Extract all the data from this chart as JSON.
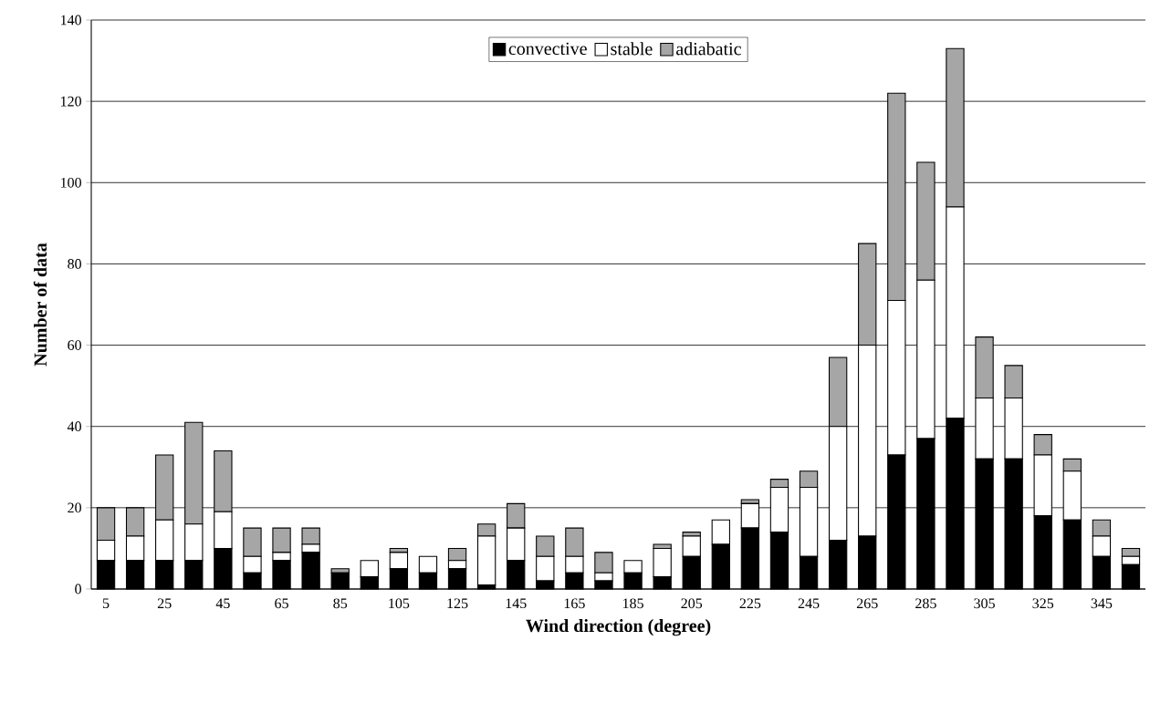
{
  "chart_data": {
    "type": "bar",
    "stacked": true,
    "xlabel": "Wind direction (degree)",
    "ylabel": "Number of data",
    "categories": [
      "5",
      null,
      "25",
      null,
      "45",
      null,
      "65",
      null,
      "85",
      null,
      "105",
      null,
      "125",
      null,
      "145",
      null,
      "165",
      null,
      "185",
      null,
      "205",
      null,
      "225",
      null,
      "245",
      null,
      "265",
      null,
      "285",
      null,
      "305",
      null,
      "325",
      null,
      "345",
      null
    ],
    "series": [
      {
        "name": "convective",
        "color": "#000000",
        "values": [
          7,
          7,
          7,
          7,
          10,
          4,
          7,
          9,
          4,
          3,
          5,
          4,
          5,
          1,
          7,
          2,
          4,
          2,
          4,
          3,
          8,
          11,
          15,
          14,
          8,
          12,
          13,
          33,
          37,
          42,
          32,
          32,
          18,
          17,
          8,
          6
        ]
      },
      {
        "name": "stable",
        "color": "#ffffff",
        "values": [
          5,
          6,
          10,
          9,
          9,
          4,
          2,
          2,
          0,
          4,
          4,
          4,
          2,
          12,
          8,
          6,
          4,
          2,
          3,
          7,
          5,
          6,
          6,
          11,
          17,
          28,
          47,
          38,
          39,
          52,
          15,
          15,
          15,
          12,
          5,
          2
        ]
      },
      {
        "name": "adiabatic",
        "color": "#a6a6a6",
        "values": [
          8,
          7,
          16,
          25,
          15,
          7,
          6,
          4,
          1,
          0,
          1,
          0,
          3,
          3,
          6,
          5,
          7,
          5,
          0,
          1,
          1,
          0,
          1,
          2,
          4,
          17,
          25,
          51,
          29,
          39,
          15,
          8,
          5,
          3,
          4,
          2
        ]
      }
    ],
    "ylim": [
      0,
      140
    ],
    "yticks": [
      0,
      20,
      40,
      60,
      80,
      100,
      120,
      140
    ],
    "grid": "y",
    "legend": "top"
  }
}
